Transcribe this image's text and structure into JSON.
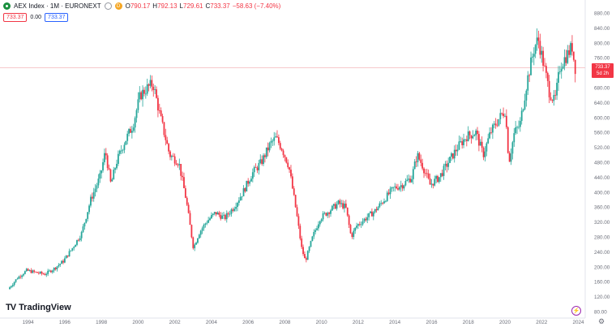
{
  "header": {
    "title": "AEX Index · 1M · EURONEXT",
    "badge": "D",
    "ohlc": [
      {
        "label": "O",
        "value": "790.17"
      },
      {
        "label": "H",
        "value": "792.13"
      },
      {
        "label": "L",
        "value": "729.61"
      },
      {
        "label": "C",
        "value": "733.37"
      },
      {
        "label": "",
        "value": "−58.63 (−7.40%)"
      }
    ],
    "sell_price": "733.37",
    "spread": "0.00",
    "buy_price": "733.37"
  },
  "price_tag": {
    "price": "733.37",
    "countdown": "5d 2h"
  },
  "branding": {
    "name": "TradingView"
  },
  "colors": {
    "up": "#26a69a",
    "down": "#f23645",
    "brand": "#131722",
    "price_line": "#f7c9cc"
  },
  "icons": {
    "flash": "flash-icon",
    "settings": "gear-icon"
  },
  "chart_data": {
    "type": "candlestick",
    "interval": "1M",
    "y_ticks": [
      80,
      120,
      160,
      200,
      240,
      280,
      320,
      360,
      400,
      440,
      480,
      520,
      560,
      600,
      640,
      680,
      720,
      760,
      800,
      840,
      880
    ],
    "y_tick_labels": [
      "80.00",
      "120.00",
      "160.00",
      "200.00",
      "240.00",
      "280.00",
      "320.00",
      "360.00",
      "400.00",
      "440.00",
      "480.00",
      "520.00",
      "560.00",
      "600.00",
      "640.00",
      "680.00",
      "720.00",
      "760.00",
      "800.00",
      "840.00",
      "880.00"
    ],
    "x_ticks": [
      "1994",
      "1996",
      "1998",
      "2000",
      "2002",
      "2004",
      "2006",
      "2008",
      "2010",
      "2012",
      "2014",
      "2016",
      "2018",
      "2020",
      "2022",
      "2024"
    ],
    "ylim": [
      80,
      880
    ],
    "xlim": [
      1993.0,
      2024.2
    ],
    "current_price": 733.37,
    "price_path": [
      [
        1993.0,
        140
      ],
      [
        1993.5,
        170
      ],
      [
        1994.0,
        190
      ],
      [
        1994.5,
        185
      ],
      [
        1995.0,
        180
      ],
      [
        1995.5,
        195
      ],
      [
        1996.0,
        215
      ],
      [
        1996.5,
        250
      ],
      [
        1997.0,
        290
      ],
      [
        1997.5,
        380
      ],
      [
        1998.0,
        440
      ],
      [
        1998.3,
        510
      ],
      [
        1998.6,
        420
      ],
      [
        1998.9,
        480
      ],
      [
        1999.3,
        530
      ],
      [
        1999.8,
        580
      ],
      [
        2000.2,
        660
      ],
      [
        2000.6,
        680
      ],
      [
        2000.9,
        690
      ],
      [
        2001.3,
        600
      ],
      [
        2001.8,
        500
      ],
      [
        2002.3,
        480
      ],
      [
        2002.7,
        380
      ],
      [
        2003.1,
        250
      ],
      [
        2003.4,
        290
      ],
      [
        2003.8,
        320
      ],
      [
        2004.3,
        345
      ],
      [
        2004.8,
        330
      ],
      [
        2005.3,
        360
      ],
      [
        2005.8,
        400
      ],
      [
        2006.3,
        450
      ],
      [
        2006.8,
        480
      ],
      [
        2007.3,
        530
      ],
      [
        2007.6,
        545
      ],
      [
        2007.9,
        520
      ],
      [
        2008.3,
        470
      ],
      [
        2008.7,
        350
      ],
      [
        2009.0,
        250
      ],
      [
        2009.2,
        215
      ],
      [
        2009.6,
        280
      ],
      [
        2010.0,
        330
      ],
      [
        2010.5,
        350
      ],
      [
        2011.0,
        370
      ],
      [
        2011.4,
        360
      ],
      [
        2011.7,
        280
      ],
      [
        2012.0,
        310
      ],
      [
        2012.5,
        330
      ],
      [
        2013.0,
        350
      ],
      [
        2013.5,
        380
      ],
      [
        2014.0,
        410
      ],
      [
        2014.5,
        420
      ],
      [
        2015.0,
        440
      ],
      [
        2015.3,
        500
      ],
      [
        2015.6,
        470
      ],
      [
        2016.0,
        420
      ],
      [
        2016.5,
        440
      ],
      [
        2017.0,
        480
      ],
      [
        2017.5,
        520
      ],
      [
        2018.0,
        550
      ],
      [
        2018.5,
        560
      ],
      [
        2018.9,
        500
      ],
      [
        2019.3,
        560
      ],
      [
        2019.8,
        600
      ],
      [
        2020.1,
        620
      ],
      [
        2020.3,
        480
      ],
      [
        2020.6,
        560
      ],
      [
        2020.9,
        580
      ],
      [
        2021.3,
        700
      ],
      [
        2021.7,
        790
      ],
      [
        2021.9,
        810
      ],
      [
        2022.2,
        740
      ],
      [
        2022.5,
        670
      ],
      [
        2022.8,
        640
      ],
      [
        2023.1,
        740
      ],
      [
        2023.5,
        770
      ],
      [
        2023.75,
        790
      ],
      [
        2023.9,
        733.37
      ]
    ]
  }
}
